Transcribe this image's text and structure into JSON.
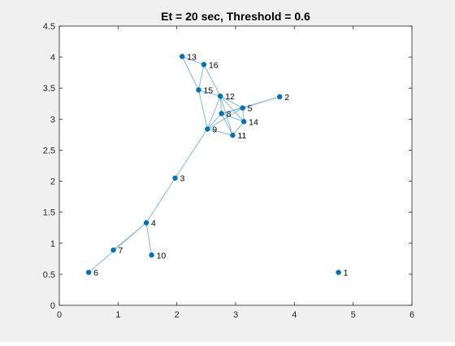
{
  "chart_data": {
    "type": "scatter",
    "title": "Et = 20 sec, Threshold = 0.6",
    "xlabel": "",
    "ylabel": "",
    "xlim": [
      0,
      6
    ],
    "ylim": [
      0,
      4.5
    ],
    "xticks": [
      0,
      1,
      2,
      3,
      4,
      5,
      6
    ],
    "yticks": [
      0,
      0.5,
      1,
      1.5,
      2,
      2.5,
      3,
      3.5,
      4,
      4.5
    ],
    "xtick_labels": [
      "0",
      "1",
      "2",
      "3",
      "4",
      "5",
      "6"
    ],
    "ytick_labels": [
      "0",
      "0.5",
      "1",
      "1.5",
      "2",
      "2.5",
      "3",
      "3.5",
      "4",
      "4.5"
    ],
    "grid": false,
    "colors": {
      "marker": "#0072bd",
      "edge": "#7fb8e0",
      "axes": "#262626",
      "figure_bg": "#f0f0f0",
      "axes_bg": "#ffffff"
    },
    "nodes": [
      {
        "id": "1",
        "label": "1",
        "x": 4.75,
        "y": 0.53
      },
      {
        "id": "2",
        "label": "2",
        "x": 3.75,
        "y": 3.36
      },
      {
        "id": "3",
        "label": "3",
        "x": 1.97,
        "y": 2.05
      },
      {
        "id": "4",
        "label": "4",
        "x": 1.48,
        "y": 1.33
      },
      {
        "id": "5",
        "label": "5",
        "x": 3.12,
        "y": 3.18
      },
      {
        "id": "6",
        "label": "6",
        "x": 0.5,
        "y": 0.53
      },
      {
        "id": "7",
        "label": "7",
        "x": 0.92,
        "y": 0.89
      },
      {
        "id": "8",
        "label": "8",
        "x": 2.76,
        "y": 3.09
      },
      {
        "id": "9",
        "label": "9",
        "x": 2.52,
        "y": 2.84
      },
      {
        "id": "10",
        "label": "10",
        "x": 1.57,
        "y": 0.81
      },
      {
        "id": "11",
        "label": "11",
        "x": 2.95,
        "y": 2.74
      },
      {
        "id": "12",
        "label": "12",
        "x": 2.74,
        "y": 3.37
      },
      {
        "id": "13",
        "label": "13",
        "x": 2.09,
        "y": 4.01
      },
      {
        "id": "14",
        "label": "14",
        "x": 3.14,
        "y": 2.96
      },
      {
        "id": "15",
        "label": "15",
        "x": 2.37,
        "y": 3.47
      },
      {
        "id": "16",
        "label": "16",
        "x": 2.46,
        "y": 3.88
      }
    ],
    "edges": [
      [
        "6",
        "4"
      ],
      [
        "7",
        "4"
      ],
      [
        "4",
        "10"
      ],
      [
        "4",
        "3"
      ],
      [
        "3",
        "9"
      ],
      [
        "13",
        "16"
      ],
      [
        "13",
        "15"
      ],
      [
        "16",
        "15"
      ],
      [
        "16",
        "12"
      ],
      [
        "15",
        "12"
      ],
      [
        "15",
        "9"
      ],
      [
        "12",
        "8"
      ],
      [
        "12",
        "9"
      ],
      [
        "12",
        "5"
      ],
      [
        "12",
        "14"
      ],
      [
        "2",
        "5"
      ],
      [
        "2",
        "8"
      ],
      [
        "5",
        "8"
      ],
      [
        "5",
        "14"
      ],
      [
        "5",
        "9"
      ],
      [
        "8",
        "9"
      ],
      [
        "8",
        "14"
      ],
      [
        "8",
        "11"
      ],
      [
        "9",
        "11"
      ],
      [
        "11",
        "14"
      ],
      [
        "11",
        "12"
      ]
    ]
  }
}
